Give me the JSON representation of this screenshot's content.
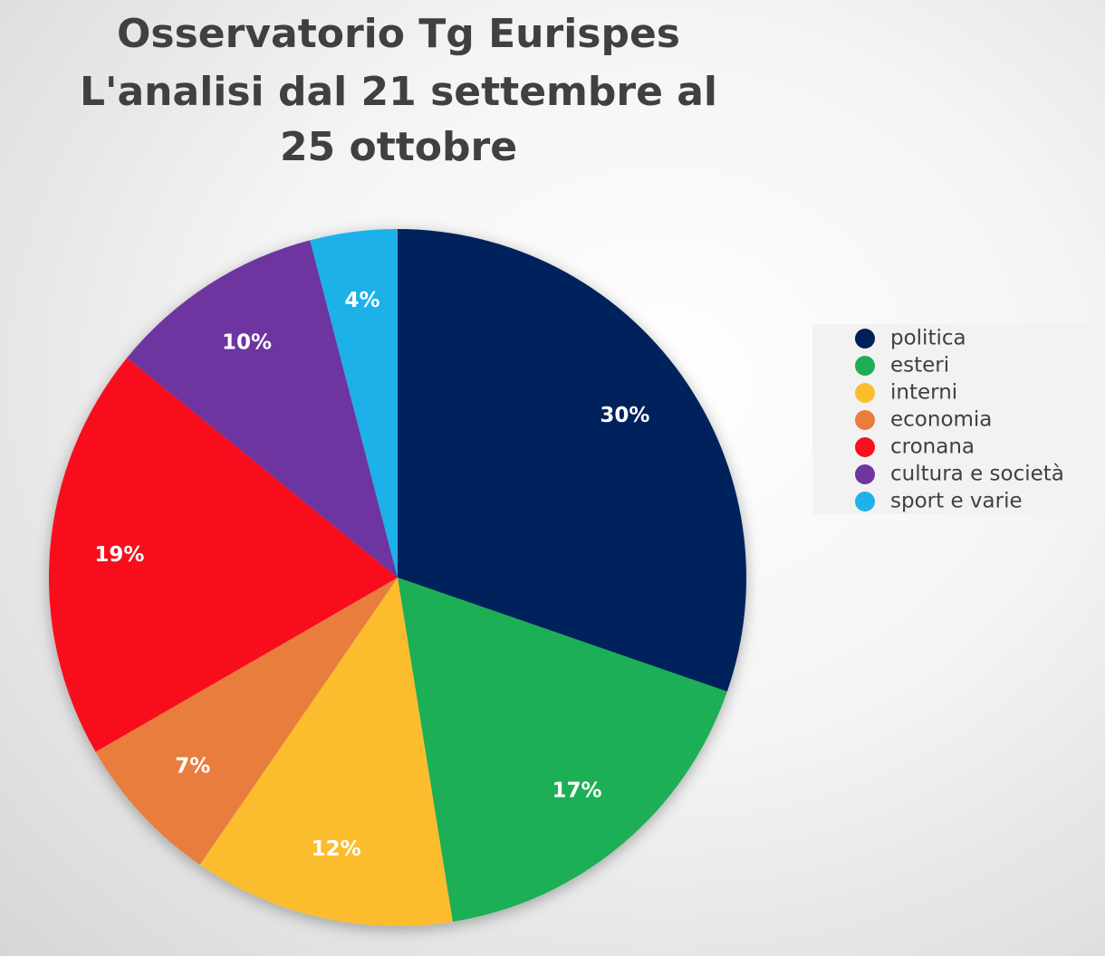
{
  "chart_data": {
    "type": "pie",
    "title": [
      "Osservatorio Tg Eurispes",
      "L'analisi dal 21 settembre al",
      "25 ottobre"
    ],
    "categories": [
      "politica",
      "esteri",
      "interni",
      "economia",
      "cronana",
      "cultura e società",
      "sport e varie"
    ],
    "values": [
      30,
      17,
      12,
      7,
      19,
      10,
      4
    ],
    "value_labels": [
      "30%",
      "17%",
      "12%",
      "7%",
      "19%",
      "10%",
      "4%"
    ],
    "colors": [
      "#00205b",
      "#1daf55",
      "#fbbd2f",
      "#e97d3d",
      "#f8101e",
      "#6e36a0",
      "#1fb1e8"
    ],
    "legend": "right"
  }
}
